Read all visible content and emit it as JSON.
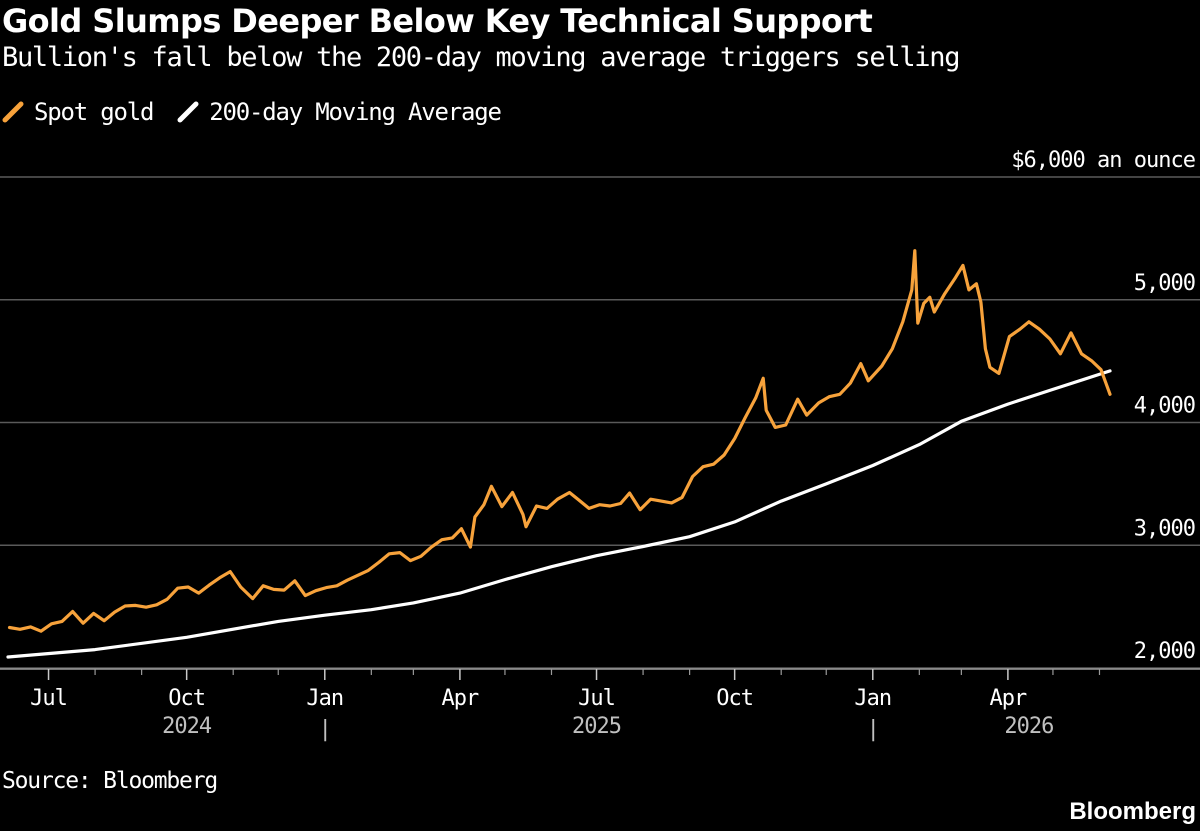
{
  "header": {
    "title": "Gold Slumps Deeper Below Key Technical Support",
    "subtitle": "Bullion's fall below the 200-day moving average triggers selling"
  },
  "legend": [
    {
      "label": "Spot gold",
      "color": "#f7a23b"
    },
    {
      "label": "200-day Moving Average",
      "color": "#ffffff"
    }
  ],
  "footer": {
    "source": "Source: Bloomberg",
    "brand": "Bloomberg"
  },
  "chart_data": {
    "type": "line",
    "title": "Gold Slumps Deeper Below Key Technical Support",
    "subtitle": "Bullion's fall below the 200-day moving average triggers selling",
    "ylabel": "$6,000 an ounce",
    "ylim": [
      2000,
      6000
    ],
    "yticks": [
      {
        "value": 6000,
        "label": "$6,000 an ounce"
      },
      {
        "value": 5000,
        "label": "5,000"
      },
      {
        "value": 4000,
        "label": "4,000"
      },
      {
        "value": 3000,
        "label": "3,000"
      },
      {
        "value": 2000,
        "label": "2,000"
      }
    ],
    "xlim": [
      "2024-06-04",
      "2026-06-12"
    ],
    "xticks": [
      {
        "date": "2024-07-01",
        "label": "Jul"
      },
      {
        "date": "2024-10-01",
        "label": "Oct"
      },
      {
        "date": "2025-01-01",
        "label": "Jan"
      },
      {
        "date": "2025-04-01",
        "label": "Apr"
      },
      {
        "date": "2025-07-01",
        "label": "Jul"
      },
      {
        "date": "2025-10-01",
        "label": "Oct"
      },
      {
        "date": "2026-01-01",
        "label": "Jan"
      },
      {
        "date": "2026-04-01",
        "label": "Apr"
      }
    ],
    "minor_ticks": [
      "2024-08-01",
      "2024-09-01",
      "2024-11-01",
      "2024-12-01",
      "2025-02-01",
      "2025-03-01",
      "2025-05-01",
      "2025-06-01",
      "2025-08-01",
      "2025-09-01",
      "2025-11-01",
      "2025-12-01",
      "2026-02-01",
      "2026-03-01",
      "2026-05-01",
      "2026-06-01"
    ],
    "years": [
      {
        "label": "2024",
        "center": "2024-10-01"
      },
      {
        "label": "2025",
        "center": "2025-07-01"
      },
      {
        "label": "2026",
        "center": "2026-04-15"
      }
    ],
    "year_separators": [
      "2025-01-01",
      "2026-01-01"
    ],
    "year_separator_label": "|",
    "grid": true,
    "legend_position": "top-left",
    "series": [
      {
        "name": "Spot gold",
        "color": "#f7a23b",
        "points": [
          [
            "2024-06-05",
            2330
          ],
          [
            "2024-06-12",
            2315
          ],
          [
            "2024-06-19",
            2335
          ],
          [
            "2024-06-26",
            2300
          ],
          [
            "2024-07-03",
            2360
          ],
          [
            "2024-07-10",
            2380
          ],
          [
            "2024-07-17",
            2460
          ],
          [
            "2024-07-24",
            2365
          ],
          [
            "2024-07-31",
            2445
          ],
          [
            "2024-08-07",
            2385
          ],
          [
            "2024-08-14",
            2455
          ],
          [
            "2024-08-21",
            2505
          ],
          [
            "2024-08-28",
            2510
          ],
          [
            "2024-09-04",
            2495
          ],
          [
            "2024-09-11",
            2515
          ],
          [
            "2024-09-18",
            2560
          ],
          [
            "2024-09-25",
            2650
          ],
          [
            "2024-10-02",
            2660
          ],
          [
            "2024-10-09",
            2610
          ],
          [
            "2024-10-16",
            2675
          ],
          [
            "2024-10-23",
            2735
          ],
          [
            "2024-10-30",
            2785
          ],
          [
            "2024-11-06",
            2660
          ],
          [
            "2024-11-14",
            2565
          ],
          [
            "2024-11-21",
            2670
          ],
          [
            "2024-11-28",
            2640
          ],
          [
            "2024-12-05",
            2635
          ],
          [
            "2024-12-12",
            2710
          ],
          [
            "2024-12-19",
            2590
          ],
          [
            "2024-12-26",
            2630
          ],
          [
            "2025-01-02",
            2655
          ],
          [
            "2025-01-09",
            2670
          ],
          [
            "2025-01-16",
            2715
          ],
          [
            "2025-01-23",
            2755
          ],
          [
            "2025-01-30",
            2795
          ],
          [
            "2025-02-06",
            2860
          ],
          [
            "2025-02-13",
            2930
          ],
          [
            "2025-02-20",
            2940
          ],
          [
            "2025-02-27",
            2875
          ],
          [
            "2025-03-06",
            2910
          ],
          [
            "2025-03-13",
            2985
          ],
          [
            "2025-03-20",
            3045
          ],
          [
            "2025-03-27",
            3060
          ],
          [
            "2025-04-02",
            3135
          ],
          [
            "2025-04-08",
            2985
          ],
          [
            "2025-04-11",
            3230
          ],
          [
            "2025-04-17",
            3330
          ],
          [
            "2025-04-22",
            3480
          ],
          [
            "2025-04-29",
            3315
          ],
          [
            "2025-05-06",
            3430
          ],
          [
            "2025-05-13",
            3250
          ],
          [
            "2025-05-15",
            3150
          ],
          [
            "2025-05-22",
            3320
          ],
          [
            "2025-05-29",
            3300
          ],
          [
            "2025-06-05",
            3375
          ],
          [
            "2025-06-13",
            3430
          ],
          [
            "2025-06-19",
            3370
          ],
          [
            "2025-06-26",
            3300
          ],
          [
            "2025-07-03",
            3330
          ],
          [
            "2025-07-10",
            3320
          ],
          [
            "2025-07-17",
            3340
          ],
          [
            "2025-07-23",
            3425
          ],
          [
            "2025-07-30",
            3290
          ],
          [
            "2025-08-06",
            3375
          ],
          [
            "2025-08-13",
            3360
          ],
          [
            "2025-08-20",
            3345
          ],
          [
            "2025-08-27",
            3390
          ],
          [
            "2025-09-03",
            3560
          ],
          [
            "2025-09-10",
            3640
          ],
          [
            "2025-09-17",
            3660
          ],
          [
            "2025-09-24",
            3735
          ],
          [
            "2025-10-01",
            3870
          ],
          [
            "2025-10-08",
            4040
          ],
          [
            "2025-10-15",
            4200
          ],
          [
            "2025-10-20",
            4360
          ],
          [
            "2025-10-22",
            4100
          ],
          [
            "2025-10-28",
            3960
          ],
          [
            "2025-11-04",
            3980
          ],
          [
            "2025-11-12",
            4190
          ],
          [
            "2025-11-18",
            4060
          ],
          [
            "2025-11-26",
            4160
          ],
          [
            "2025-12-03",
            4210
          ],
          [
            "2025-12-10",
            4230
          ],
          [
            "2025-12-17",
            4320
          ],
          [
            "2025-12-24",
            4480
          ],
          [
            "2025-12-29",
            4340
          ],
          [
            "2026-01-07",
            4460
          ],
          [
            "2026-01-14",
            4600
          ],
          [
            "2026-01-21",
            4820
          ],
          [
            "2026-01-27",
            5080
          ],
          [
            "2026-01-29",
            5400
          ],
          [
            "2026-01-31",
            4810
          ],
          [
            "2026-02-04",
            4970
          ],
          [
            "2026-02-08",
            5020
          ],
          [
            "2026-02-11",
            4900
          ],
          [
            "2026-02-18",
            5050
          ],
          [
            "2026-02-25",
            5180
          ],
          [
            "2026-03-02",
            5280
          ],
          [
            "2026-03-06",
            5080
          ],
          [
            "2026-03-11",
            5130
          ],
          [
            "2026-03-14",
            4980
          ],
          [
            "2026-03-17",
            4600
          ],
          [
            "2026-03-20",
            4450
          ],
          [
            "2026-03-26",
            4400
          ],
          [
            "2026-04-02",
            4700
          ],
          [
            "2026-04-09",
            4760
          ],
          [
            "2026-04-15",
            4820
          ],
          [
            "2026-04-22",
            4760
          ],
          [
            "2026-04-29",
            4680
          ],
          [
            "2026-05-06",
            4560
          ],
          [
            "2026-05-13",
            4730
          ],
          [
            "2026-05-20",
            4560
          ],
          [
            "2026-05-27",
            4500
          ],
          [
            "2026-06-02",
            4430
          ],
          [
            "2026-06-05",
            4330
          ],
          [
            "2026-06-08",
            4230
          ]
        ]
      },
      {
        "name": "200-day Moving Average",
        "color": "#ffffff",
        "points": [
          [
            "2024-06-04",
            2090
          ],
          [
            "2024-08-01",
            2150
          ],
          [
            "2024-10-01",
            2250
          ],
          [
            "2024-12-01",
            2380
          ],
          [
            "2025-01-01",
            2430
          ],
          [
            "2025-02-01",
            2475
          ],
          [
            "2025-03-01",
            2530
          ],
          [
            "2025-04-01",
            2610
          ],
          [
            "2025-05-01",
            2720
          ],
          [
            "2025-06-01",
            2825
          ],
          [
            "2025-07-01",
            2915
          ],
          [
            "2025-08-01",
            2990
          ],
          [
            "2025-09-01",
            3070
          ],
          [
            "2025-10-01",
            3190
          ],
          [
            "2025-11-01",
            3360
          ],
          [
            "2025-12-01",
            3500
          ],
          [
            "2026-01-01",
            3650
          ],
          [
            "2026-02-01",
            3820
          ],
          [
            "2026-03-01",
            4010
          ],
          [
            "2026-04-01",
            4150
          ],
          [
            "2026-05-01",
            4270
          ],
          [
            "2026-06-08",
            4420
          ]
        ]
      }
    ]
  }
}
